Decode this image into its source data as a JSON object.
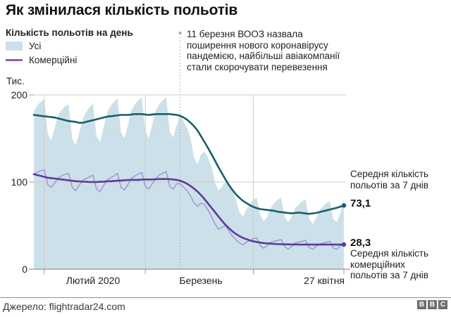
{
  "title": "Як змінилася кількість польотів",
  "legend": {
    "heading": "Кількість польотів на день",
    "items": [
      {
        "label": "Усі",
        "swatch": "area",
        "color": "#cce0e9"
      },
      {
        "label": "Комерційні",
        "swatch": "line",
        "color": "#7b66bb"
      }
    ]
  },
  "annotation": {
    "text": "11 березня ВООЗ назвала\nпоширення нового коронавірусу\nпандемією, найбільші авіакомпанії\nстали скорочувати перевезення"
  },
  "callouts": {
    "all_caption": "Середня кількість\nпольотів за 7 днів",
    "all_value": "73,1",
    "commercial_value": "28,3",
    "commercial_caption": "Середня кількість\nкомерційних\nпольотів за 7 днів"
  },
  "source": "Джерело: flightradar24.com",
  "logo_letters": [
    "B",
    "B",
    "C"
  ],
  "logo_color": "#6e6e6e",
  "chart_data": {
    "type": "area",
    "unit_label": "Тис.",
    "ylim": [
      0,
      200
    ],
    "y_ticks": [
      200,
      100,
      0
    ],
    "y_tick_labels": [
      "200",
      "100",
      "0"
    ],
    "x_end_day": 89,
    "x_gridline_days": [
      3,
      32,
      63
    ],
    "x_tick_labels": [
      {
        "label": "Лютий 2020"
      },
      {
        "label": "Березень"
      },
      {
        "label": "27 квітня"
      }
    ],
    "event": {
      "day": 42,
      "label": "11 березня"
    },
    "grid_color": "#cccccc",
    "axis_color": "#7e7e7e",
    "tick_color": "#999999",
    "event_line_color": "#a6a6a6",
    "series": [
      {
        "name": "Усі (щоденно)",
        "type": "area",
        "color": "#cce0e9",
        "values": [
          181,
          188,
          192,
          195,
          155,
          148,
          162,
          177,
          183,
          187,
          189,
          150,
          142,
          156,
          172,
          180,
          186,
          190,
          152,
          146,
          162,
          179,
          187,
          192,
          196,
          157,
          150,
          165,
          182,
          189,
          194,
          197,
          158,
          150,
          166,
          182,
          189,
          194,
          197,
          158,
          151,
          165,
          176,
          170,
          162,
          150,
          128,
          120,
          132,
          135,
          128,
          118,
          100,
          90,
          95,
          100,
          98,
          90,
          80,
          66,
          60,
          68,
          74,
          80,
          82,
          62,
          55,
          60,
          70,
          76,
          80,
          82,
          60,
          54,
          60,
          70,
          74,
          78,
          80,
          58,
          52,
          58,
          68,
          72,
          76,
          78,
          57,
          54,
          65,
          80
        ]
      },
      {
        "name": "Комерційні (щоденно)",
        "type": "line",
        "color": "#a08fd8",
        "width": 1.4,
        "values": [
          109,
          111,
          113,
          114,
          97,
          94,
          99,
          105,
          107,
          109,
          110,
          94,
          90,
          96,
          102,
          104,
          106,
          108,
          92,
          89,
          96,
          102,
          105,
          107,
          110,
          94,
          91,
          97,
          104,
          107,
          109,
          111,
          95,
          92,
          98,
          104,
          108,
          110,
          112,
          95,
          92,
          98,
          98,
          94,
          90,
          84,
          76,
          72,
          76,
          74,
          68,
          60,
          52,
          46,
          48,
          50,
          44,
          38,
          34,
          30,
          28,
          31,
          33,
          35,
          36,
          27,
          24,
          27,
          31,
          32,
          33,
          34,
          26,
          23,
          26,
          30,
          31,
          32,
          33,
          25,
          23,
          26,
          29,
          30,
          31,
          32,
          24,
          23,
          27,
          29
        ]
      },
      {
        "name": "Усі (середня за 7 днів)",
        "type": "line",
        "color": "#175f6a",
        "width": 2.6,
        "end_dot": true,
        "end_value": 73.1,
        "values": [
          177,
          176.5,
          176,
          175.5,
          175,
          174.5,
          174,
          173,
          172,
          171,
          170,
          169.5,
          169,
          168,
          168,
          169,
          170,
          171,
          172,
          173,
          174,
          175,
          175.5,
          176,
          176.5,
          177,
          177,
          177,
          177.5,
          178,
          178,
          178,
          177.5,
          177,
          177.5,
          178,
          178,
          178,
          178,
          178,
          177.5,
          177,
          176,
          174,
          171.5,
          168,
          164,
          159,
          152.5,
          146,
          139,
          132,
          124.5,
          117,
          110,
          103,
          96.5,
          91,
          86,
          82,
          78.5,
          76,
          73.5,
          71.5,
          70,
          69,
          68.5,
          68,
          67.5,
          67,
          66,
          65.5,
          65,
          64.5,
          64,
          64.5,
          65,
          64.5,
          64,
          63.5,
          64,
          64.5,
          65.5,
          66.5,
          67.5,
          68.5,
          69.5,
          70.5,
          71.8,
          73.1
        ]
      },
      {
        "name": "Комерційні (середня за 7 днів)",
        "type": "line",
        "color": "#5b3b97",
        "width": 2.6,
        "end_dot": true,
        "end_value": 28.3,
        "values": [
          109,
          108,
          107,
          106,
          105,
          104.5,
          104,
          103.5,
          103,
          102.5,
          102,
          101.5,
          101,
          100.8,
          100.5,
          100.3,
          100,
          100,
          100,
          100.3,
          100.5,
          100.8,
          101,
          101.3,
          101.5,
          101.8,
          102,
          102.3,
          102.5,
          102.5,
          102.5,
          102.8,
          103,
          103,
          103,
          103.3,
          103.5,
          103.5,
          103.5,
          103.3,
          103,
          102.5,
          101.5,
          100,
          98,
          95.5,
          92.5,
          89,
          85,
          80.5,
          75.5,
          70.5,
          65.5,
          60.5,
          55.5,
          51,
          47,
          43.5,
          40.5,
          38,
          36,
          34.5,
          33,
          32,
          31.2,
          30.5,
          30,
          29.6,
          29.3,
          29,
          28.8,
          28.7,
          28.6,
          28.5,
          28.4,
          28.4,
          28.3,
          28.3,
          28.3,
          28.3,
          28.3,
          28.3,
          28.3,
          28.3,
          28.3,
          28.3,
          28.3,
          28.3,
          28.3,
          28.3
        ]
      }
    ]
  }
}
